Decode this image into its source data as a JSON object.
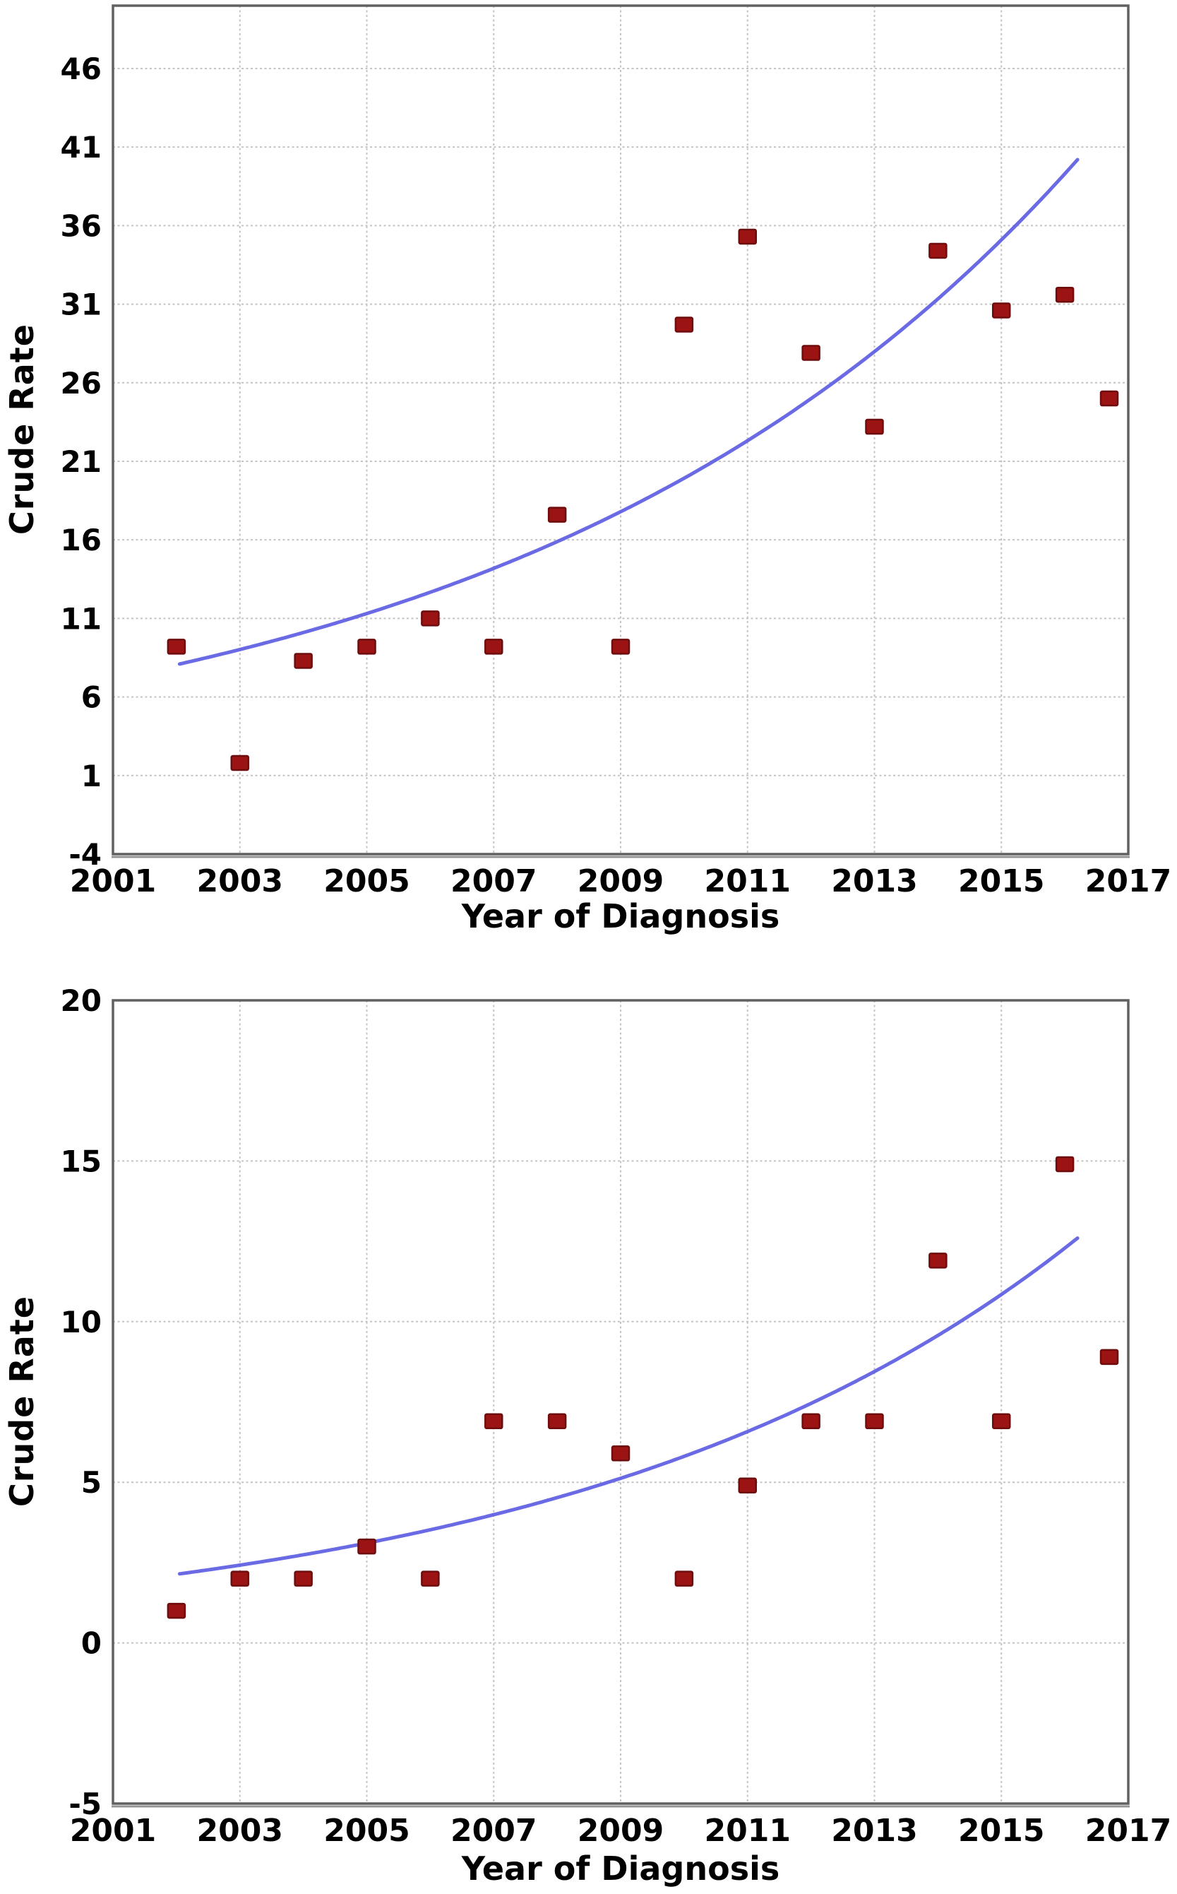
{
  "figure": {
    "description": "Two stacked scatter plots of crude incidence rate by year of diagnosis, each with an exponential trend line and dark-red square markers"
  },
  "colors": {
    "background": "#ffffff",
    "marker_fill": "#9c1313",
    "marker_edge": "#6e0d0d",
    "trend_line": "#5d5de2",
    "grid_line": "#c4c4c4",
    "plot_border": "#606060",
    "plot_border_bottom": "#949494",
    "axis_text": "#000000"
  },
  "chart_data": [
    {
      "type": "scatter",
      "title": "",
      "xlabel": "Year of Diagnosis",
      "ylabel": "Crude Rate",
      "xlim": [
        2001,
        2017
      ],
      "ylim": [
        -4,
        50
      ],
      "x_ticks": [
        2001,
        2003,
        2005,
        2007,
        2009,
        2011,
        2013,
        2015,
        2017
      ],
      "y_ticks": [
        46,
        41,
        36,
        31,
        26,
        21,
        16,
        11,
        6,
        1,
        -4
      ],
      "grid": true,
      "legend": "none",
      "marker": "square",
      "points": [
        [
          2002,
          9.2
        ],
        [
          2003,
          1.8
        ],
        [
          2004,
          8.3
        ],
        [
          2005,
          9.2
        ],
        [
          2006,
          11.0
        ],
        [
          2007,
          9.2
        ],
        [
          2008,
          17.6
        ],
        [
          2009,
          9.2
        ],
        [
          2010,
          29.7
        ],
        [
          2011,
          35.3
        ],
        [
          2012,
          27.9
        ],
        [
          2013,
          23.2
        ],
        [
          2014,
          34.4
        ],
        [
          2015,
          30.6
        ],
        [
          2016,
          31.6
        ],
        [
          2016.7,
          25.0
        ]
      ],
      "trend": {
        "model": "exponential",
        "x_start": 2002.05,
        "y_start": 8.1,
        "x_end": 2016.2,
        "y_end": 40.2
      }
    },
    {
      "type": "scatter",
      "title": "",
      "xlabel": "Year of Diagnosis",
      "ylabel": "Crude Rate",
      "xlim": [
        2001,
        2017
      ],
      "ylim": [
        -5,
        20
      ],
      "x_ticks": [
        2001,
        2003,
        2005,
        2007,
        2009,
        2011,
        2013,
        2015,
        2017
      ],
      "y_ticks": [
        20,
        15,
        10,
        5,
        0,
        -5
      ],
      "grid": true,
      "legend": "none",
      "marker": "square",
      "points": [
        [
          2002,
          1.0
        ],
        [
          2003,
          2.0
        ],
        [
          2004,
          2.0
        ],
        [
          2005,
          3.0
        ],
        [
          2006,
          2.0
        ],
        [
          2007,
          6.9
        ],
        [
          2008,
          6.9
        ],
        [
          2009,
          5.9
        ],
        [
          2010,
          2.0
        ],
        [
          2011,
          4.9
        ],
        [
          2012,
          6.9
        ],
        [
          2013,
          6.9
        ],
        [
          2014,
          11.9
        ],
        [
          2015,
          6.9
        ],
        [
          2016,
          14.9
        ],
        [
          2016.7,
          8.9
        ]
      ],
      "trend": {
        "model": "exponential",
        "x_start": 2002.05,
        "y_start": 2.15,
        "x_end": 2016.2,
        "y_end": 12.6
      }
    }
  ]
}
